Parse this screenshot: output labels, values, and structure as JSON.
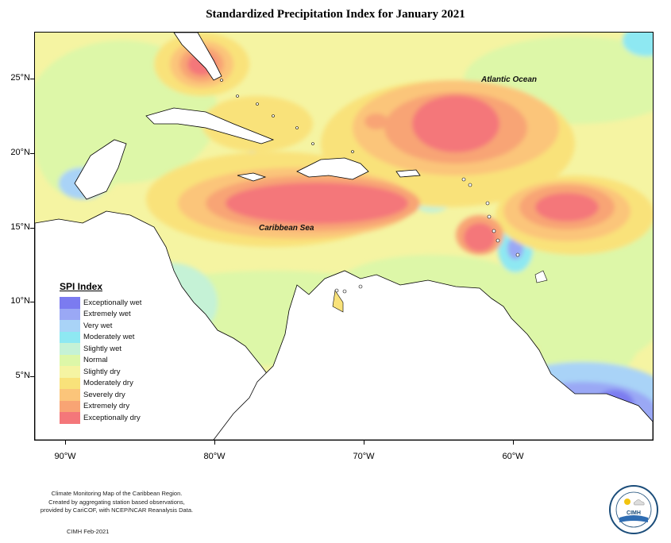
{
  "title": "Standardized Precipitation Index for January 2021",
  "map": {
    "lat_ticks": [
      "25°N",
      "20°N",
      "15°N",
      "10°N",
      "5°N"
    ],
    "lon_ticks": [
      "90°W",
      "80°W",
      "70°W",
      "60°W"
    ],
    "ocean_labels": {
      "atlantic": "Atlantic Ocean",
      "caribbean": "Caribbean Sea"
    }
  },
  "legend": {
    "title": "SPI Index",
    "items": [
      {
        "label": "Exceptionally wet",
        "color": "#7b7bf0"
      },
      {
        "label": "Extremely wet",
        "color": "#9aa8f5"
      },
      {
        "label": "Very wet",
        "color": "#a9d3f7"
      },
      {
        "label": "Moderately wet",
        "color": "#8ee8f2"
      },
      {
        "label": "Slightly wet",
        "color": "#c5f2d6"
      },
      {
        "label": "Normal",
        "color": "#ddf7a8"
      },
      {
        "label": "Slightly dry",
        "color": "#f5f4a2"
      },
      {
        "label": "Moderately dry",
        "color": "#f9e27a"
      },
      {
        "label": "Severely dry",
        "color": "#fbc57a"
      },
      {
        "label": "Extremely dry",
        "color": "#f8a474"
      },
      {
        "label": "Exceptionally dry",
        "color": "#f4777a"
      }
    ]
  },
  "footer": {
    "line1": "Climate Monitoring Map of the Caribbean Region.",
    "line2": "Created by aggregating station based observations,",
    "line3": "provided by CariCOF, with NCEP/NCAR Reanalysis Data.",
    "credit": "CIMH Feb-2021"
  },
  "logo": {
    "text": "CIMH"
  }
}
